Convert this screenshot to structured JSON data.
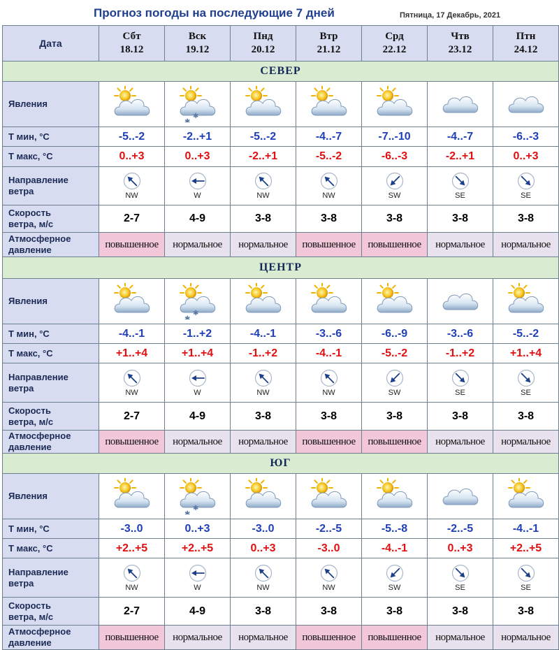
{
  "header": {
    "title": "Прогноз погоды на последующие 7 дней",
    "date": "Пятница, 17 Декабрь, 2021",
    "date_label": "Дата"
  },
  "days": [
    {
      "name": "Сбт",
      "date": "18.12"
    },
    {
      "name": "Вск",
      "date": "19.12"
    },
    {
      "name": "Пнд",
      "date": "20.12"
    },
    {
      "name": "Втр",
      "date": "21.12"
    },
    {
      "name": "Срд",
      "date": "22.12"
    },
    {
      "name": "Чтв",
      "date": "23.12"
    },
    {
      "name": "Птн",
      "date": "24.12"
    }
  ],
  "labels": {
    "phenomena": "Явления",
    "tmin": "Т мин, °С",
    "tmax": "Т макс, °С",
    "wind_dir_1": "Направление",
    "wind_dir_2": "ветра",
    "wind_speed_1": "Скорость",
    "wind_speed_2": "ветра, м/с",
    "pressure_1": "Атмосферное",
    "pressure_2": "давление"
  },
  "colors": {
    "tmin": "#1f3fb8",
    "tmax": "#e01010",
    "pressure_high_bg": "#f2c7d8",
    "pressure_normal_bg": "#e8e2ee",
    "region_bg": "#d9ecd2",
    "header_bg": "#d7dcf0"
  },
  "regions": [
    {
      "name": "СЕВЕР",
      "icons": [
        "sun-cloud-icon",
        "snow-cloud-icon",
        "sun-cloud-icon",
        "sun-cloud-icon",
        "sun-cloud-icon",
        "cloud-icon",
        "cloud-icon"
      ],
      "tmin": [
        "-5..-2",
        "-2..+1",
        "-5..-2",
        "-4..-7",
        "-7..-10",
        "-4..-7",
        "-6..-3"
      ],
      "tmax": [
        "0..+3",
        "0..+3",
        "-2..+1",
        "-5..-2",
        "-6..-3",
        "-2..+1",
        "0..+3"
      ],
      "wind_dir": [
        "NW",
        "W",
        "NW",
        "NW",
        "SW",
        "SE",
        "SE"
      ],
      "wind_speed": [
        "2-7",
        "4-9",
        "3-8",
        "3-8",
        "3-8",
        "3-8",
        "3-8"
      ],
      "pressure": [
        "повышенное",
        "нормальное",
        "нормальное",
        "повышенное",
        "повышенное",
        "нормальное",
        "нормальное"
      ]
    },
    {
      "name": "ЦЕНТР",
      "icons": [
        "sun-cloud-icon",
        "snow-cloud-icon",
        "sun-cloud-icon",
        "sun-cloud-icon",
        "sun-cloud-icon",
        "cloud-icon",
        "sun-cloud-icon"
      ],
      "tmin": [
        "-4..-1",
        "-1..+2",
        "-4..-1",
        "-3..-6",
        "-6..-9",
        "-3..-6",
        "-5..-2"
      ],
      "tmax": [
        "+1..+4",
        "+1..+4",
        "-1..+2",
        "-4..-1",
        "-5..-2",
        "-1..+2",
        "+1..+4"
      ],
      "wind_dir": [
        "NW",
        "W",
        "NW",
        "NW",
        "SW",
        "SE",
        "SE"
      ],
      "wind_speed": [
        "2-7",
        "4-9",
        "3-8",
        "3-8",
        "3-8",
        "3-8",
        "3-8"
      ],
      "pressure": [
        "повышенное",
        "нормальное",
        "нормальное",
        "повышенное",
        "повышенное",
        "нормальное",
        "нормальное"
      ]
    },
    {
      "name": "ЮГ",
      "icons": [
        "sun-cloud-icon",
        "snow-cloud-icon",
        "sun-cloud-icon",
        "sun-cloud-icon",
        "sun-cloud-icon",
        "cloud-icon",
        "sun-cloud-icon"
      ],
      "tmin": [
        "-3..0",
        "0..+3",
        "-3..0",
        "-2..-5",
        "-5..-8",
        "-2..-5",
        "-4..-1"
      ],
      "tmax": [
        "+2..+5",
        "+2..+5",
        "0..+3",
        "-3..0",
        "-4..-1",
        "0..+3",
        "+2..+5"
      ],
      "wind_dir": [
        "NW",
        "W",
        "NW",
        "NW",
        "SW",
        "SE",
        "SE"
      ],
      "wind_speed": [
        "2-7",
        "4-9",
        "3-8",
        "3-8",
        "3-8",
        "3-8",
        "3-8"
      ],
      "pressure": [
        "повышенное",
        "нормальное",
        "нормальное",
        "повышенное",
        "повышенное",
        "нормальное",
        "нормальное"
      ]
    }
  ]
}
